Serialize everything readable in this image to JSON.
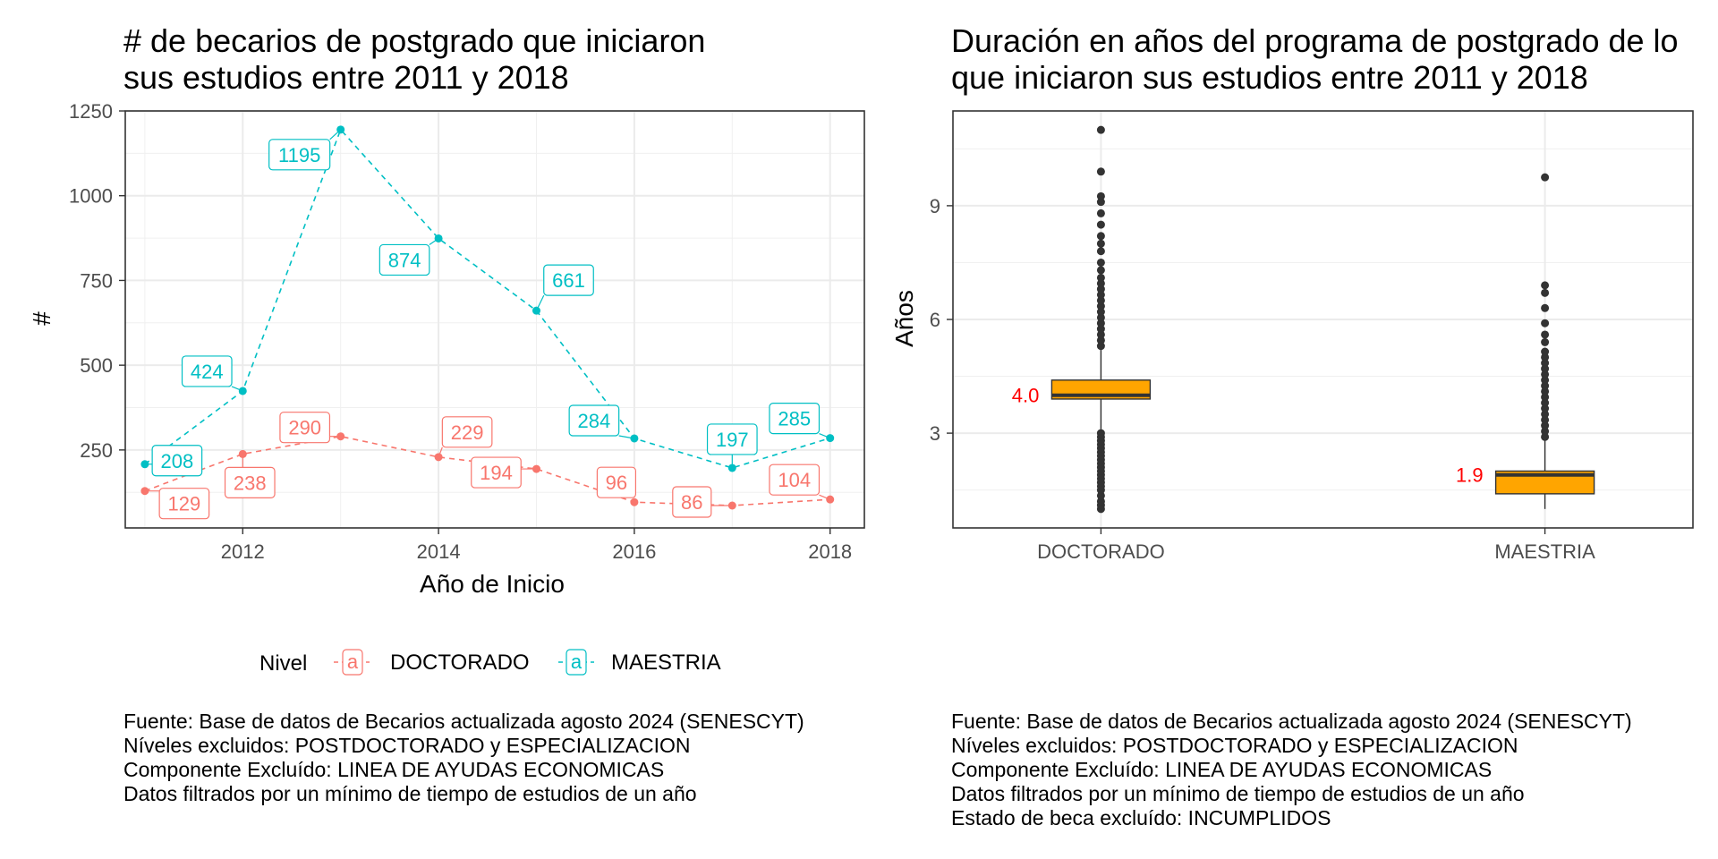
{
  "colors": {
    "doctorado": "#F8766D",
    "maestria": "#00BFC4",
    "box_fill": "#FFA500",
    "median_label": "#FF0000",
    "points": "#333333"
  },
  "chart_data": [
    {
      "type": "line",
      "title_lines": [
        "# de becarios de postgrado que iniciaron",
        "sus estudios entre 2011 y 2018"
      ],
      "xlabel": "Año de Inicio",
      "ylabel": "#",
      "x": [
        2011,
        2012,
        2013,
        2014,
        2015,
        2016,
        2017,
        2018
      ],
      "xlim": [
        2010.8,
        2018.35
      ],
      "ylim": [
        20,
        1250
      ],
      "xticks": [
        2012,
        2014,
        2016,
        2018
      ],
      "xtick_labels": [
        "2012",
        "2014",
        "2016",
        "2018"
      ],
      "yticks": [
        250,
        500,
        750,
        1000,
        1250
      ],
      "ytick_labels": [
        "250",
        "500",
        "750",
        "1000",
        "1250"
      ],
      "grid": true,
      "legend_title": "Nivel",
      "legend_position": "bottom",
      "legend_key": "a",
      "series": [
        {
          "name": "DOCTORADO",
          "values": [
            129,
            238,
            290,
            229,
            194,
            96,
            86,
            104
          ],
          "labels": [
            "129",
            "238",
            "290",
            "229",
            "194",
            "96",
            "86",
            "104"
          ]
        },
        {
          "name": "MAESTRIA",
          "values": [
            208,
            424,
            1195,
            874,
            661,
            284,
            197,
            285
          ],
          "labels": [
            "208",
            "424",
            "1195",
            "874",
            "661",
            "284",
            "197",
            "285"
          ]
        }
      ],
      "caption": [
        "Fuente: Base de datos de Becarios actualizada agosto 2024 (SENESCYT)",
        "Níveles excluidos: POSTDOCTORADO y ESPECIALIZACION",
        "Componente Excluído: LINEA DE AYUDAS ECONOMICAS",
        "Datos filtrados por un mínimo de tiempo de estudios de un año"
      ]
    },
    {
      "type": "box",
      "title_lines": [
        "Duración en años del programa de postgrado de lo",
        "que iniciaron sus estudios entre 2011 y 2018"
      ],
      "xlabel": "",
      "ylabel": "Años",
      "categories": [
        "DOCTORADO",
        "MAESTRIA"
      ],
      "ylim": [
        0.5,
        11.5
      ],
      "yticks": [
        3,
        6,
        9
      ],
      "ytick_labels": [
        "3",
        "6",
        "9"
      ],
      "grid": true,
      "boxes": [
        {
          "category": "DOCTORADO",
          "q1": 3.9,
          "median": 4.0,
          "q3": 4.4,
          "whisker_low": 3.1,
          "whisker_high": 5.2,
          "median_label": "4.0",
          "outliers": [
            1.0,
            1.1,
            1.2,
            1.35,
            1.5,
            1.6,
            1.7,
            1.8,
            1.9,
            2.0,
            2.1,
            2.2,
            2.3,
            2.4,
            2.5,
            2.6,
            2.7,
            2.8,
            2.9,
            3.0,
            5.3,
            5.45,
            5.6,
            5.75,
            5.9,
            6.05,
            6.2,
            6.35,
            6.5,
            6.65,
            6.8,
            6.95,
            7.1,
            7.3,
            7.5,
            7.8,
            8.0,
            8.2,
            8.5,
            8.8,
            9.1,
            9.25,
            9.9,
            11.0
          ]
        },
        {
          "category": "MAESTRIA",
          "q1": 1.4,
          "median": 1.9,
          "q3": 2.0,
          "whisker_low": 1.0,
          "whisker_high": 2.8,
          "median_label": "1.9",
          "outliers": [
            2.9,
            3.05,
            3.2,
            3.35,
            3.5,
            3.65,
            3.8,
            3.95,
            4.1,
            4.25,
            4.4,
            4.55,
            4.7,
            4.85,
            5.0,
            5.15,
            5.4,
            5.6,
            5.9,
            6.3,
            6.7,
            6.9,
            9.75
          ]
        }
      ],
      "caption": [
        "Fuente: Base de datos de Becarios actualizada agosto 2024 (SENESCYT)",
        "Níveles excluidos: POSTDOCTORADO y ESPECIALIZACION",
        "Componente Excluído: LINEA DE AYUDAS ECONOMICAS",
        "Datos filtrados por un mínimo de tiempo de estudios de un año",
        "Estado de beca excluído: INCUMPLIDOS"
      ]
    }
  ]
}
